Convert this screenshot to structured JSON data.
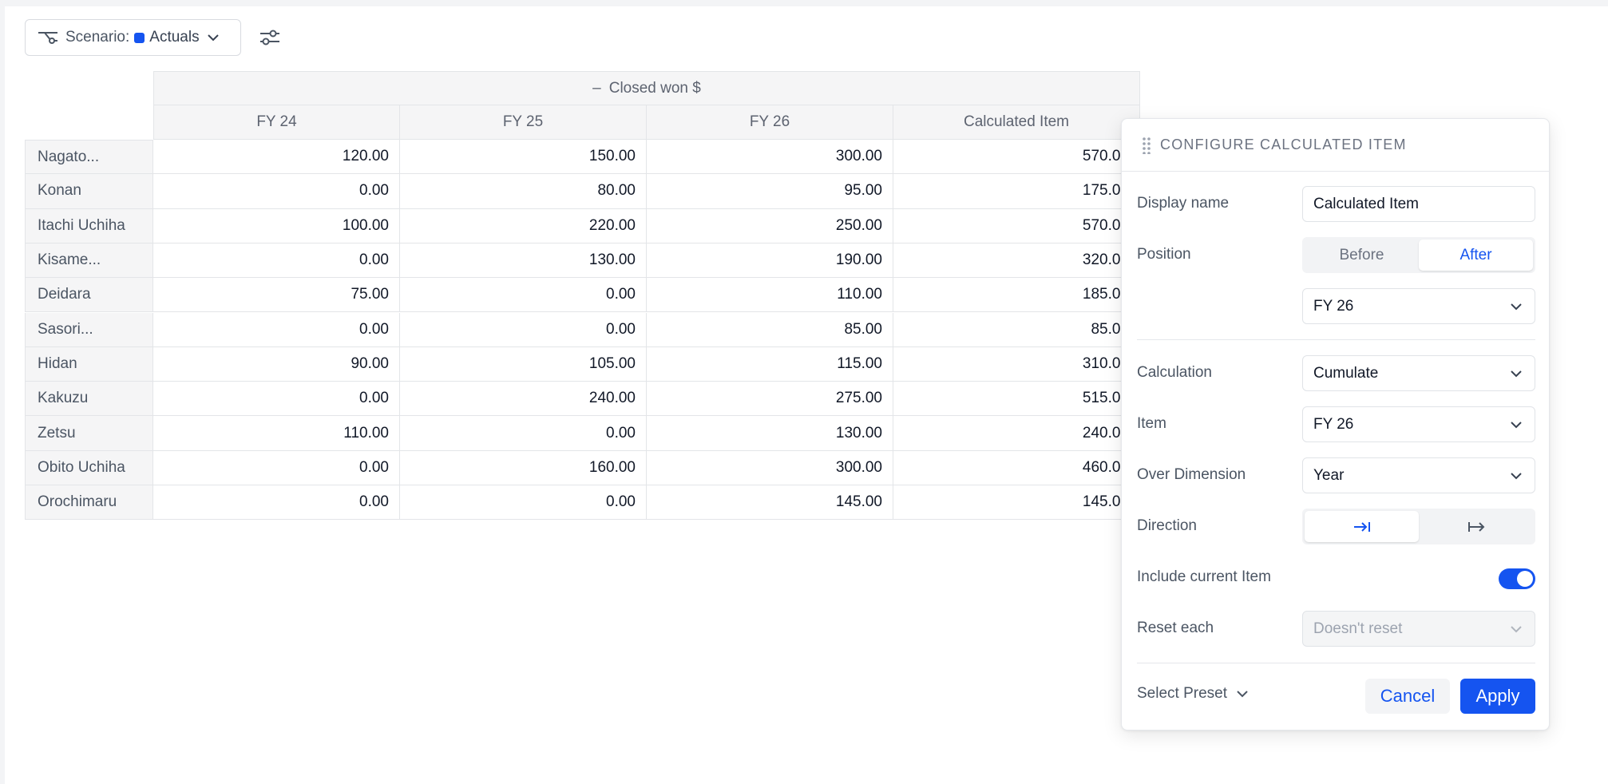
{
  "toolbar": {
    "scenario_label": "Scenario:",
    "scenario_value": "Actuals",
    "scenario_color": "#1554f0"
  },
  "table": {
    "group_header": "Closed won $",
    "group_header_prefix": "–",
    "columns": [
      "FY 24",
      "FY 25",
      "FY 26",
      "Calculated Item"
    ],
    "rows": [
      {
        "label": "Nagato...",
        "values": [
          "120.00",
          "150.00",
          "300.00",
          "570.00"
        ]
      },
      {
        "label": "Konan",
        "values": [
          "0.00",
          "80.00",
          "95.00",
          "175.00"
        ]
      },
      {
        "label": "Itachi Uchiha",
        "values": [
          "100.00",
          "220.00",
          "250.00",
          "570.00"
        ]
      },
      {
        "label": "Kisame...",
        "values": [
          "0.00",
          "130.00",
          "190.00",
          "320.00"
        ]
      },
      {
        "label": "Deidara",
        "values": [
          "75.00",
          "0.00",
          "110.00",
          "185.00"
        ]
      },
      {
        "label": "Sasori...",
        "values": [
          "0.00",
          "0.00",
          "85.00",
          "85.00"
        ]
      },
      {
        "label": "Hidan",
        "values": [
          "90.00",
          "105.00",
          "115.00",
          "310.00"
        ]
      },
      {
        "label": "Kakuzu",
        "values": [
          "0.00",
          "240.00",
          "275.00",
          "515.00"
        ]
      },
      {
        "label": "Zetsu",
        "values": [
          "110.00",
          "0.00",
          "130.00",
          "240.00"
        ]
      },
      {
        "label": "Obito Uchiha",
        "values": [
          "0.00",
          "160.00",
          "300.00",
          "460.00"
        ]
      },
      {
        "label": "Orochimaru",
        "values": [
          "0.00",
          "0.00",
          "145.00",
          "145.00"
        ]
      }
    ]
  },
  "panel": {
    "title": "CONFIGURE CALCULATED ITEM",
    "display_name_label": "Display name",
    "display_name_value": "Calculated Item",
    "position_label": "Position",
    "position_options": [
      "Before",
      "After"
    ],
    "position_selected": "After",
    "position_item": "FY 26",
    "calculation_label": "Calculation",
    "calculation_value": "Cumulate",
    "item_label": "Item",
    "item_value": "FY 26",
    "over_dimension_label": "Over Dimension",
    "over_dimension_value": "Year",
    "direction_label": "Direction",
    "direction_options": [
      "→|",
      "|→"
    ],
    "include_current_label": "Include current Item",
    "include_current_on": true,
    "reset_each_label": "Reset each",
    "reset_each_placeholder": "Doesn't reset",
    "select_preset_label": "Select Preset",
    "cancel_label": "Cancel",
    "apply_label": "Apply",
    "accent_color": "#1554f0"
  }
}
